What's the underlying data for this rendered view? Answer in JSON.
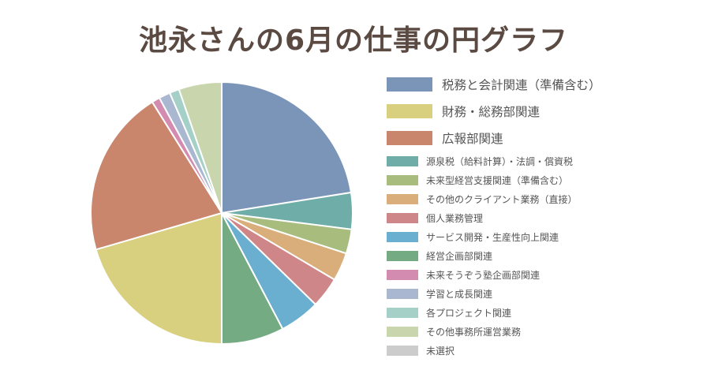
{
  "chart_data": {
    "type": "pie",
    "title": "池永さんの6月の仕事の円グラフ",
    "legend_position": "right",
    "slices": [
      {
        "label": "税務と会計関連（準備含む）",
        "value": 22.5,
        "color": "#7b95b8"
      },
      {
        "label": "財務・総務部関連",
        "value": 0,
        "color": "#d8cf7f"
      },
      {
        "label": "広報部関連",
        "value": 0,
        "color": "#c9866d"
      },
      {
        "label": "源泉税（給料計算）・法調・償資税",
        "value": 4.5,
        "color": "#6fada8"
      },
      {
        "label": "未来型経営支援関連（準備含む）",
        "value": 3.0,
        "color": "#a8bd7d"
      },
      {
        "label": "その他のクライアント業務（直接）",
        "value": 3.5,
        "color": "#d9ae7b"
      },
      {
        "label": "個人業務管理",
        "value": 3.8,
        "color": "#cf8688"
      },
      {
        "label": "サービス開発・生産性向上関連",
        "value": 5.0,
        "color": "#6bafd0"
      },
      {
        "label": "経営企画部関連",
        "value": 7.7,
        "color": "#75ab82"
      },
      {
        "label": "財務・総務部関連",
        "value": 20.5,
        "color": "#d8cf7f"
      },
      {
        "label": "広報部関連",
        "value": 20.6,
        "color": "#c9866d"
      },
      {
        "label": "未来そうぞう塾企画部関連",
        "value": 1.0,
        "color": "#d48bb0"
      },
      {
        "label": "学習と成長関連",
        "value": 1.4,
        "color": "#a9b7d0"
      },
      {
        "label": "各プロジェクト関連",
        "value": 1.2,
        "color": "#a5d0c8"
      },
      {
        "label": "その他事務所運営業務",
        "value": 5.3,
        "color": "#c9d6ad"
      },
      {
        "label": "未選択",
        "value": 0,
        "color": "#cccccc"
      }
    ],
    "legend": [
      {
        "label": "税務と会計関連（準備含む）",
        "color": "#7b95b8",
        "size": "big"
      },
      {
        "label": "財務・総務部関連",
        "color": "#d8cf7f",
        "size": "big"
      },
      {
        "label": "広報部関連",
        "color": "#c9866d",
        "size": "big"
      },
      {
        "label": "源泉税（給料計算）・法調・償資税",
        "color": "#6fada8",
        "size": "small"
      },
      {
        "label": "未来型経営支援関連（準備含む）",
        "color": "#a8bd7d",
        "size": "small"
      },
      {
        "label": "その他のクライアント業務（直接）",
        "color": "#d9ae7b",
        "size": "small"
      },
      {
        "label": "個人業務管理",
        "color": "#cf8688",
        "size": "small"
      },
      {
        "label": "サービス開発・生産性向上関連",
        "color": "#6bafd0",
        "size": "small"
      },
      {
        "label": "経営企画部関連",
        "color": "#75ab82",
        "size": "small"
      },
      {
        "label": "未来そうぞう塾企画部関連",
        "color": "#d48bb0",
        "size": "small"
      },
      {
        "label": "学習と成長関連",
        "color": "#a9b7d0",
        "size": "small"
      },
      {
        "label": "各プロジェクト関連",
        "color": "#a5d0c8",
        "size": "small"
      },
      {
        "label": "その他事務所運営業務",
        "color": "#c9d6ad",
        "size": "small"
      },
      {
        "label": "未選択",
        "color": "#cccccc",
        "size": "small"
      }
    ]
  }
}
